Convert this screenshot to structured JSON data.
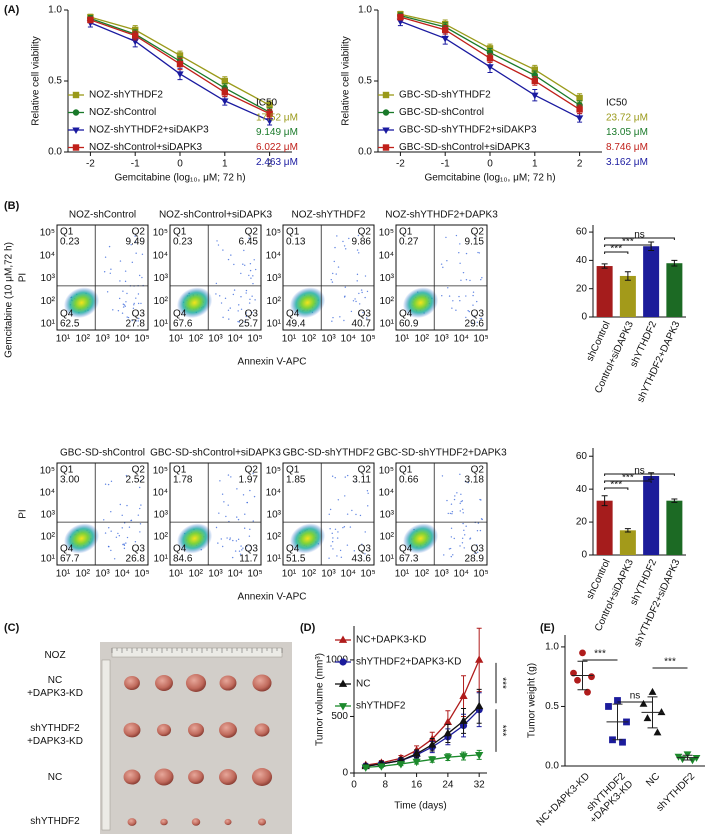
{
  "panel_labels": [
    "(A)",
    "(B)",
    "(C)",
    "(D)",
    "(E)"
  ],
  "chart_data": [
    {
      "type": "line",
      "y_label": "Relative cell viability",
      "x_label": "Gemcitabine (log₁₀, μM; 72 h)",
      "x": [
        -2,
        -1,
        0,
        1,
        2
      ],
      "xlim": [
        -2.5,
        2.5
      ],
      "xticks": [
        -2,
        -1,
        0,
        1,
        2
      ],
      "ylim": [
        0,
        1
      ],
      "yticks": [
        {
          "value": 0,
          "label": "0.0"
        },
        {
          "value": 0.5,
          "label": "0.5"
        },
        {
          "value": 1,
          "label": "1.0"
        }
      ],
      "series": [
        {
          "name": "NOZ-shYTHDF2",
          "color": "#9a9a1a",
          "marker": "square",
          "values": [
            0.95,
            0.86,
            0.68,
            0.5,
            0.33
          ],
          "errors": [
            0.02,
            0.03,
            0.03,
            0.03,
            0.03
          ]
        },
        {
          "name": "NOZ-shControl",
          "color": "#1a7a2a",
          "marker": "circle",
          "values": [
            0.94,
            0.83,
            0.64,
            0.45,
            0.28
          ],
          "errors": [
            0.02,
            0.03,
            0.03,
            0.03,
            0.03
          ]
        },
        {
          "name": "NOZ-shYTHDF2+siDAKP3",
          "color": "#1a1aa0",
          "marker": "triangle-down",
          "values": [
            0.91,
            0.78,
            0.55,
            0.36,
            0.22
          ],
          "errors": [
            0.03,
            0.04,
            0.04,
            0.03,
            0.03
          ]
        },
        {
          "name": "NOZ-shControl+siDAPK3",
          "color": "#c0201a",
          "marker": "square",
          "values": [
            0.93,
            0.82,
            0.62,
            0.42,
            0.27
          ],
          "errors": [
            0.02,
            0.03,
            0.04,
            0.03,
            0.03
          ]
        }
      ],
      "annotation_title": "IC50",
      "annotations": [
        {
          "text": "17.52 μM",
          "color": "#9a9a1a"
        },
        {
          "text": "9.149 μM",
          "color": "#1a7a2a"
        },
        {
          "text": "6.022 μM",
          "color": "#c0201a"
        },
        {
          "text": "2.463 μM",
          "color": "#1a1aa0"
        }
      ]
    },
    {
      "type": "line",
      "y_label": "Relative cell viability",
      "x_label": "Gemcitabine (log₁₀, μM; 72 h)",
      "x": [
        -2,
        -1,
        0,
        1,
        2
      ],
      "xlim": [
        -2.5,
        2.5
      ],
      "xticks": [
        -2,
        -1,
        0,
        1,
        2
      ],
      "ylim": [
        0,
        1
      ],
      "yticks": [
        {
          "value": 0,
          "label": "0.0"
        },
        {
          "value": 0.5,
          "label": "0.5"
        },
        {
          "value": 1,
          "label": "1.0"
        }
      ],
      "series": [
        {
          "name": "GBC-SD-shYTHDF2",
          "color": "#9a9a1a",
          "marker": "square",
          "values": [
            0.97,
            0.9,
            0.73,
            0.58,
            0.38
          ],
          "errors": [
            0.02,
            0.03,
            0.03,
            0.03,
            0.03
          ]
        },
        {
          "name": "GBC-SD-shControl",
          "color": "#1a7a2a",
          "marker": "circle",
          "values": [
            0.96,
            0.88,
            0.7,
            0.54,
            0.33
          ],
          "errors": [
            0.02,
            0.03,
            0.03,
            0.03,
            0.03
          ]
        },
        {
          "name": "GBC-SD-shYTHDF2+siDAKP3",
          "color": "#1a1aa0",
          "marker": "triangle-down",
          "values": [
            0.92,
            0.8,
            0.6,
            0.4,
            0.24
          ],
          "errors": [
            0.03,
            0.04,
            0.04,
            0.04,
            0.03
          ]
        },
        {
          "name": "GBC-SD-shControl+siDAPK3",
          "color": "#c0201a",
          "marker": "square",
          "values": [
            0.95,
            0.86,
            0.66,
            0.5,
            0.3
          ],
          "errors": [
            0.02,
            0.03,
            0.03,
            0.03,
            0.03
          ]
        }
      ],
      "annotation_title": "IC50",
      "annotations": [
        {
          "text": "23.72 μM",
          "color": "#9a9a1a"
        },
        {
          "text": "13.05 μM",
          "color": "#1a7a2a"
        },
        {
          "text": "8.746 μM",
          "color": "#c0201a"
        },
        {
          "text": "3.162 μM",
          "color": "#1a1aa0"
        }
      ]
    },
    {
      "type": "bar",
      "categories": [
        "shControl",
        "Control+siDAPK3",
        "shYTHDF2",
        "shYTHDF2+DAPK3"
      ],
      "values": [
        36,
        29,
        50,
        38
      ],
      "errors": [
        1.5,
        3,
        3,
        2
      ],
      "colors": [
        "#a51c1c",
        "#a39a1a",
        "#1c1c9a",
        "#1c6a24"
      ],
      "ylim": [
        0,
        65
      ],
      "yticks": [
        0,
        20,
        40,
        60
      ],
      "significance": [
        "***",
        "***",
        "ns"
      ]
    },
    {
      "type": "bar",
      "categories": [
        "shControl",
        "Control+siDAPK3",
        "shYTHDF2",
        "shYTHDF2+siDAPK3"
      ],
      "values": [
        33,
        15,
        48,
        33
      ],
      "errors": [
        3,
        1,
        2,
        1
      ],
      "colors": [
        "#a51c1c",
        "#a39a1a",
        "#1c1c9a",
        "#1c6a24"
      ],
      "ylim": [
        0,
        65
      ],
      "yticks": [
        0,
        20,
        40,
        60
      ],
      "significance": [
        "***",
        "***",
        "ns"
      ]
    },
    {
      "type": "line",
      "y_label": "Tumor volume (mm³)",
      "x_label": "Time (days)",
      "x": [
        3,
        7,
        12,
        16,
        20,
        24,
        28,
        32
      ],
      "xlim": [
        0,
        34
      ],
      "xticks": [
        0,
        8,
        16,
        24,
        32
      ],
      "ylim": [
        0,
        1300
      ],
      "yticks": [
        0,
        500,
        1000
      ],
      "series": [
        {
          "name": "NC+DAPK3-KD",
          "color": "#b01c1c",
          "marker": "triangle-up",
          "values": [
            70,
            90,
            130,
            200,
            300,
            450,
            680,
            1000
          ],
          "errors": [
            15,
            20,
            25,
            40,
            60,
            100,
            180,
            280
          ]
        },
        {
          "name": "shYTHDF2+DAPK3-KD",
          "color": "#1c1c9c",
          "marker": "circle",
          "values": [
            60,
            80,
            110,
            160,
            230,
            320,
            420,
            560
          ],
          "errors": [
            15,
            20,
            25,
            35,
            50,
            70,
            100,
            150
          ]
        },
        {
          "name": "NC",
          "color": "#111111",
          "marker": "triangle-up",
          "values": [
            60,
            80,
            110,
            170,
            250,
            350,
            460,
            590
          ],
          "errors": [
            15,
            20,
            25,
            35,
            55,
            80,
            110,
            150
          ]
        },
        {
          "name": "shYTHDF2",
          "color": "#1c8a2c",
          "marker": "triangle-down",
          "values": [
            50,
            60,
            80,
            100,
            120,
            140,
            150,
            160
          ],
          "errors": [
            10,
            12,
            15,
            20,
            25,
            30,
            35,
            40
          ]
        }
      ],
      "significance": [
        "***",
        "***"
      ]
    },
    {
      "type": "dot",
      "y_label": "Tumor weight (g)",
      "categories": [
        "NC+DAPK3-KD",
        "shYTHDF2\n+DAPK3-KD",
        "NC",
        "shYTHDF2"
      ],
      "points": [
        [
          0.95,
          0.78,
          0.75,
          0.72,
          0.62
        ],
        [
          0.55,
          0.5,
          0.37,
          0.22,
          0.2
        ],
        [
          0.62,
          0.52,
          0.45,
          0.4,
          0.28
        ],
        [
          0.1,
          0.08,
          0.07,
          0.06,
          0.05
        ]
      ],
      "means": [
        0.76,
        0.37,
        0.45,
        0.07
      ],
      "sds": [
        0.12,
        0.15,
        0.13,
        0.02
      ],
      "colors": [
        "#b01c1c",
        "#1c1c9c",
        "#111111",
        "#1c8a2c"
      ],
      "markers": [
        "circle",
        "square",
        "triangle-up",
        "triangle-down"
      ],
      "ylim": [
        0,
        1.1
      ],
      "yticks": [
        {
          "value": 0,
          "label": "0.0"
        },
        {
          "value": 0.5,
          "label": "0.5"
        },
        {
          "value": 1,
          "label": "1.0"
        }
      ],
      "significance": [
        "***",
        "ns",
        "***"
      ]
    }
  ],
  "flow": {
    "y_group_label": "Gemcitabine (10 μM,72 h)",
    "y_label": "PI",
    "x_label": "Annexin V-APC",
    "quadrant_names": [
      "Q1",
      "Q2",
      "Q3",
      "Q4"
    ],
    "ticks": [
      "10¹",
      "10²",
      "10³",
      "10⁴",
      "10⁵"
    ],
    "rows": [
      {
        "panels": [
          {
            "title": "NOZ-shControl",
            "quadrants": [
              "0.23",
              "9.49",
              "27.8",
              "62.5"
            ]
          },
          {
            "title": "NOZ-shControl+siDAPK3",
            "quadrants": [
              "0.23",
              "6.45",
              "25.7",
              "67.6"
            ]
          },
          {
            "title": "NOZ-shYTHDF2",
            "quadrants": [
              "0.13",
              "9.86",
              "40.7",
              "49.4"
            ]
          },
          {
            "title": "NOZ-shYTHDF2+DAPK3",
            "quadrants": [
              "0.27",
              "9.15",
              "29.6",
              "60.9"
            ]
          }
        ]
      },
      {
        "panels": [
          {
            "title": "GBC-SD-shControl",
            "quadrants": [
              "3.00",
              "2.52",
              "26.8",
              "67.7"
            ]
          },
          {
            "title": "GBC-SD-shControl+siDAPK3",
            "quadrants": [
              "1.78",
              "1.97",
              "11.7",
              "84.6"
            ]
          },
          {
            "title": "GBC-SD-shYTHDF2",
            "quadrants": [
              "1.85",
              "3.11",
              "43.6",
              "51.5"
            ]
          },
          {
            "title": "GBC-SD-shYTHDF2+DAPK3",
            "quadrants": [
              "0.66",
              "3.18",
              "28.9",
              "67.3"
            ]
          }
        ]
      }
    ]
  },
  "photo": {
    "labels": [
      "NOZ",
      "NC\n+DAPK3-KD",
      "shYTHDF2\n+DAPK3-KD",
      "NC",
      "shYTHDF2"
    ]
  }
}
